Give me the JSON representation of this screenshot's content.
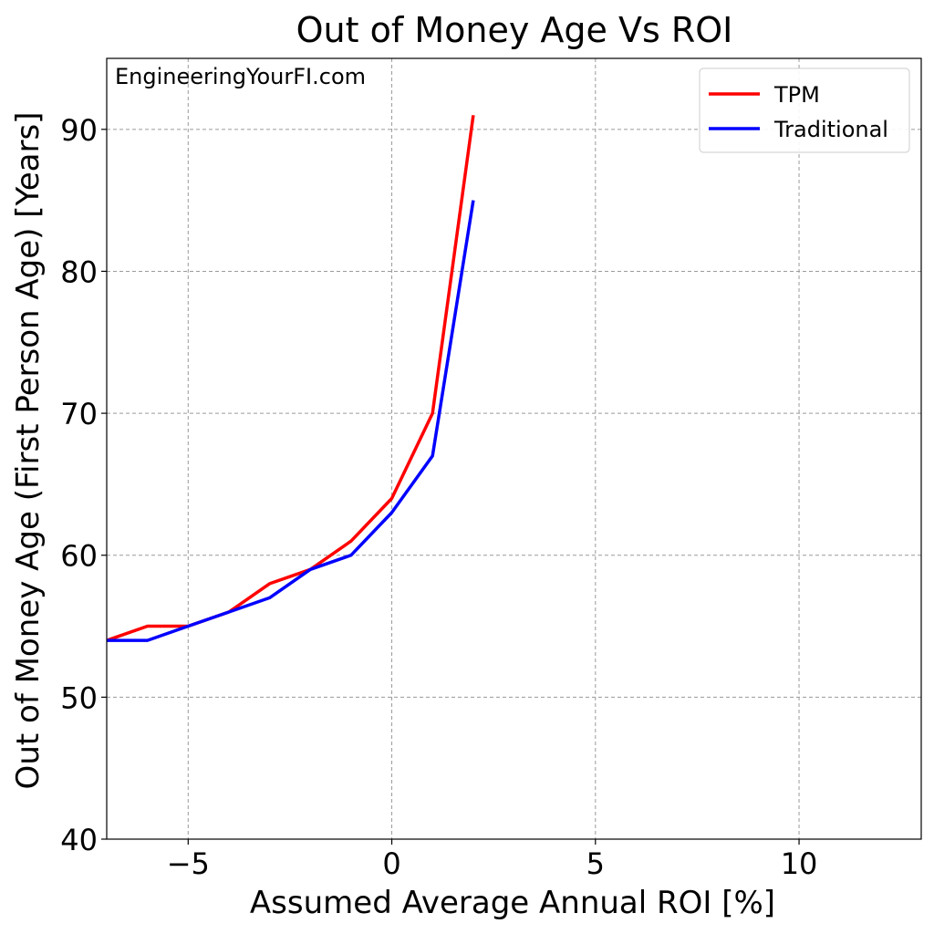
{
  "chart_data": {
    "type": "line",
    "title": "Out of Money Age Vs ROI",
    "xlabel": "Assumed Average Annual ROI [%]",
    "ylabel": "Out of Money Age (First Person Age) [Years]",
    "watermark": "EngineeringYourFI.com",
    "xlim": [
      -7,
      13
    ],
    "ylim": [
      40,
      95
    ],
    "x_ticks": [
      -5,
      0,
      5,
      10
    ],
    "x_tick_labels": [
      "−5",
      "0",
      "5",
      "10"
    ],
    "y_ticks": [
      40,
      50,
      60,
      70,
      80,
      90
    ],
    "y_tick_labels": [
      "40",
      "50",
      "60",
      "70",
      "80",
      "90"
    ],
    "grid": true,
    "legend_position": "top-right",
    "series": [
      {
        "name": "TPM",
        "color": "#ff0000",
        "x": [
          -7,
          -6,
          -5,
          -4,
          -3,
          -2,
          -1,
          0,
          1,
          2
        ],
        "y": [
          54,
          55,
          55,
          56,
          58,
          59,
          61,
          64,
          70,
          91
        ]
      },
      {
        "name": "Traditional",
        "color": "#0000ff",
        "x": [
          -7,
          -6,
          -5,
          -4,
          -3,
          -2,
          -1,
          0,
          1,
          2
        ],
        "y": [
          54,
          54,
          55,
          56,
          57,
          59,
          60,
          63,
          67,
          85
        ]
      }
    ]
  }
}
